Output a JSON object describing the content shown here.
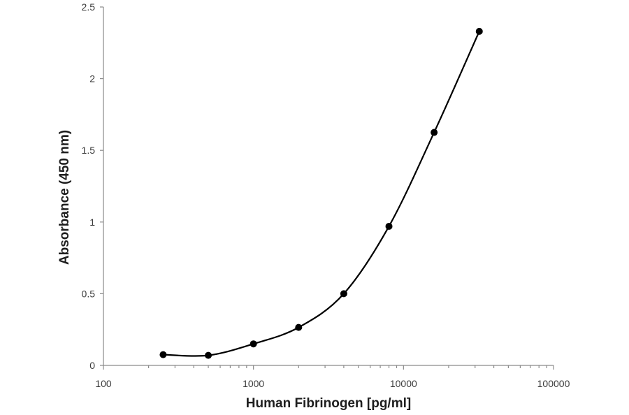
{
  "chart_data": {
    "type": "scatter",
    "xlabel": "Human Fibrinogen [pg/ml]",
    "ylabel": "Absorbance (450 nm)",
    "x_scale": "log",
    "xlim": [
      100,
      100000
    ],
    "ylim": [
      0,
      2.5
    ],
    "x_ticks": [
      100,
      1000,
      10000,
      100000
    ],
    "x_tick_labels": [
      "100",
      "1000",
      "10000",
      "100000"
    ],
    "y_ticks": [
      0,
      0.5,
      1,
      1.5,
      2,
      2.5
    ],
    "y_tick_labels": [
      "0",
      "0.5",
      "1",
      "1.5",
      "2",
      "2.5"
    ],
    "grid": false,
    "legend": "none",
    "series": [
      {
        "x": [
          250,
          500,
          1000,
          2000,
          4000,
          8000,
          16000,
          32000
        ],
        "y": [
          0.075,
          0.07,
          0.15,
          0.265,
          0.5,
          0.97,
          1.625,
          2.33
        ],
        "marker": "circle",
        "line": "smoothed",
        "color": "#000000"
      }
    ]
  }
}
